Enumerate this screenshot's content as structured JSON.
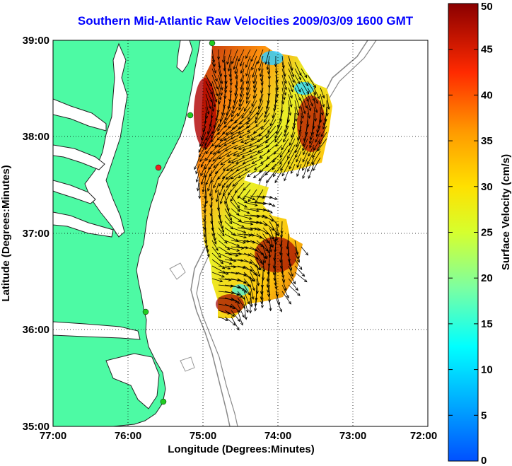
{
  "title": "Southern Mid-Atlantic Raw Velocities 2009/03/09 1600 GMT",
  "x_axis": {
    "label": "Longitude (Degrees:Minutes)",
    "ticks": [
      "77:00",
      "76:00",
      "75:00",
      "74:00",
      "73:00",
      "72:00"
    ]
  },
  "y_axis": {
    "label": "Latitude (Degrees:Minutes)",
    "ticks": [
      "39:00",
      "38:00",
      "37:00",
      "36:00",
      "35:00"
    ]
  },
  "colorbar": {
    "label": "Surface Velocity (cm/s)",
    "ticks": [
      "50",
      "45",
      "40",
      "35",
      "30",
      "25",
      "20",
      "15",
      "10",
      "5",
      "0"
    ],
    "min": 0,
    "max": 50
  },
  "colors": {
    "land": "#4dfaa4",
    "water": "#ffffff",
    "bathymetry": "#888888",
    "title": "#0000ff",
    "station_marker": "#22cc22",
    "station_marker_alt": "#ee2222"
  }
}
